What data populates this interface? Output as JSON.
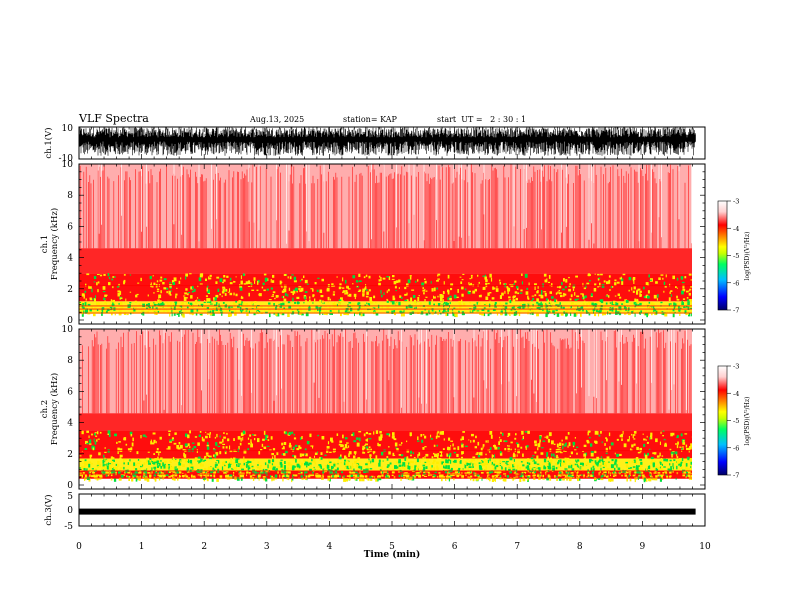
{
  "header": {
    "title": "VLF Spectra",
    "date": "Aug.13, 2025",
    "station": "station= KAP",
    "start": "start  UT =   2 : 30 : 1"
  },
  "colors": {
    "axis": "#000000",
    "spectrogram_background": "#ffffff",
    "low_power": "#ff0000",
    "mid_power": "#ffee00",
    "high_power": "#00e040",
    "colormap": [
      "#000066",
      "#0000ff",
      "#00c0ff",
      "#00ff60",
      "#c8ff00",
      "#ffff00",
      "#ff8000",
      "#ff0000",
      "#ffd0d0",
      "#ffffff"
    ]
  },
  "chart_data": [
    {
      "type": "line",
      "panel": "ch1-waveform",
      "ylabel": "ch.1(V)",
      "ylim": [
        -10,
        10
      ],
      "yticks": [
        "10",
        "-10"
      ],
      "xlim": [
        0,
        10
      ],
      "description_values": {
        "typical_min_V": -8,
        "typical_max_V": 10
      }
    },
    {
      "type": "heatmap",
      "panel": "ch1-spectrogram",
      "ylabel_channel": "ch.1",
      "ylabel": "Frequency (kHz)",
      "ylim": [
        0,
        10
      ],
      "yticks": [
        "0",
        "2",
        "4",
        "6",
        "8",
        "10"
      ],
      "xlim": [
        0,
        9.85
      ],
      "colorbar": {
        "label": "log(PSD)(V²/Hz)",
        "range": [
          -7,
          -3
        ],
        "ticks": [
          "-3",
          "-4",
          "-5",
          "-6",
          "-7"
        ]
      },
      "bands_khz": [
        {
          "from": 0.4,
          "to": 1.2,
          "level": "high"
        },
        {
          "from": 1.2,
          "to": 3.0,
          "level": "mid"
        },
        {
          "from": 3.0,
          "to": 4.6,
          "level": "low-dense"
        },
        {
          "from": 4.6,
          "to": 10.0,
          "level": "low-sparse"
        }
      ]
    },
    {
      "type": "heatmap",
      "panel": "ch2-spectrogram",
      "ylabel_channel": "ch.2",
      "ylabel": "Frequency (kHz)",
      "ylim": [
        0,
        10
      ],
      "yticks": [
        "0",
        "2",
        "4",
        "6",
        "8",
        "10"
      ],
      "xlim": [
        0,
        9.85
      ],
      "colorbar": {
        "label": "log(PSD)(V²/Hz)",
        "range": [
          -7,
          -3
        ],
        "ticks": [
          "-3",
          "-4",
          "-5",
          "-6",
          "-7"
        ]
      },
      "bands_khz": [
        {
          "from": 0.4,
          "to": 0.9,
          "level": "mid"
        },
        {
          "from": 0.9,
          "to": 1.7,
          "level": "high"
        },
        {
          "from": 1.7,
          "to": 3.5,
          "level": "mid"
        },
        {
          "from": 3.5,
          "to": 4.6,
          "level": "low-dense"
        },
        {
          "from": 4.6,
          "to": 10.0,
          "level": "low-sparse"
        }
      ]
    },
    {
      "type": "line",
      "panel": "ch3-waveform",
      "ylabel": "ch.3(V)",
      "ylim": [
        -5,
        5
      ],
      "yticks": [
        "5",
        "0",
        "-5"
      ],
      "xlim": [
        0,
        10
      ],
      "xlabel": "Time (min)",
      "xticks": [
        "0",
        "1",
        "2",
        "3",
        "4",
        "5",
        "6",
        "7",
        "8",
        "9",
        "10"
      ],
      "description_values": {
        "level_V": -0.5
      }
    }
  ]
}
